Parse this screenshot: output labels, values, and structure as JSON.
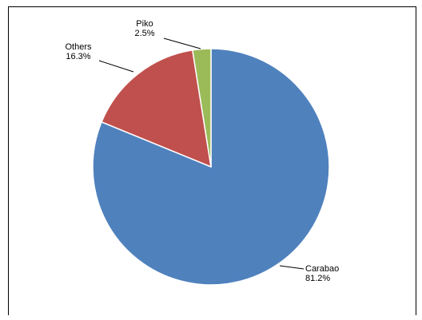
{
  "chart_data": {
    "type": "pie",
    "title": "",
    "slices": [
      {
        "label": "Carabao",
        "value": 81.2,
        "value_label": "81.2%",
        "color": "#4f81bd"
      },
      {
        "label": "Others",
        "value": 16.3,
        "value_label": "16.3%",
        "color": "#c0504d"
      },
      {
        "label": "Piko",
        "value": 2.5,
        "value_label": "2.5%",
        "color": "#9bbb59"
      }
    ],
    "start": "12 o'clock",
    "direction": "clockwise",
    "legend": "none",
    "data_labels": "outside with leader lines"
  }
}
